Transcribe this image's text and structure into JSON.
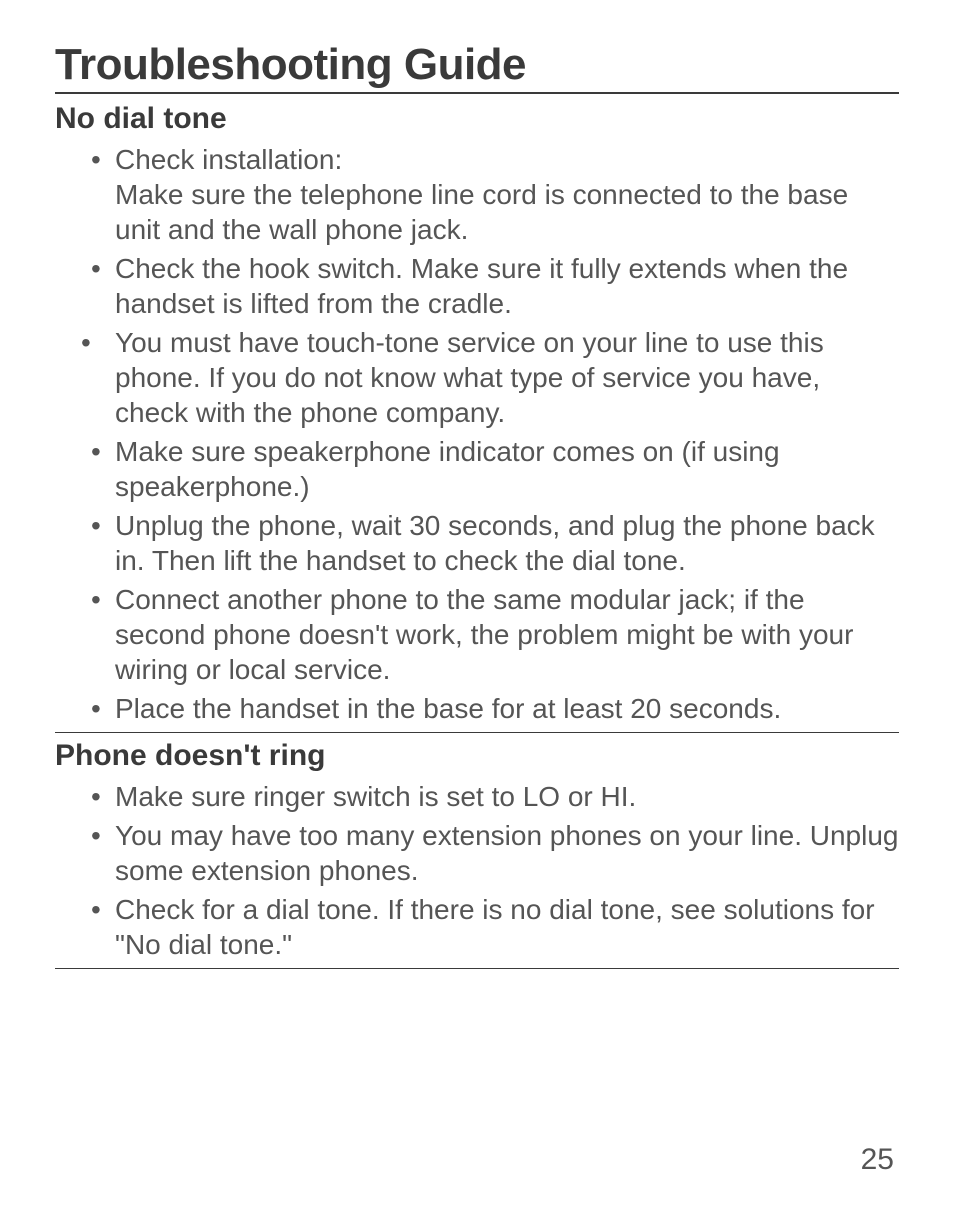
{
  "title": "Troubleshooting Guide",
  "sections": [
    {
      "heading": "No dial tone",
      "items": [
        {
          "main": "Check installation:",
          "sub": "Make sure the telephone line cord is connected to the base unit and the wall phone jack."
        },
        {
          "main": "Check the hook switch. Make sure it fully extends when the handset is lifted from the cradle."
        },
        {
          "main": "You must have touch-tone service on your line to use this phone. If you do not know what type of service you have, check with the phone company.",
          "tight": true
        },
        {
          "main": "Make sure speakerphone indicator comes on (if using speakerphone.)"
        },
        {
          "main": "Unplug the phone, wait 30 seconds, and plug the phone back in. Then lift the handset to check the dial tone."
        },
        {
          "main": "Connect another phone to the same modular jack; if the second phone doesn't work, the problem might be with your wiring or local service."
        },
        {
          "main": "Place the handset in the base for at least 20 seconds."
        }
      ]
    },
    {
      "heading": "Phone doesn't ring",
      "items": [
        {
          "main": "Make sure ringer switch is set to LO or HI."
        },
        {
          "main": "You may have too many extension phones on your line. Unplug some extension phones."
        },
        {
          "main": "Check for a dial tone. If there is no dial tone, see solutions for \"No dial tone.\""
        }
      ]
    }
  ],
  "page_number": "25"
}
